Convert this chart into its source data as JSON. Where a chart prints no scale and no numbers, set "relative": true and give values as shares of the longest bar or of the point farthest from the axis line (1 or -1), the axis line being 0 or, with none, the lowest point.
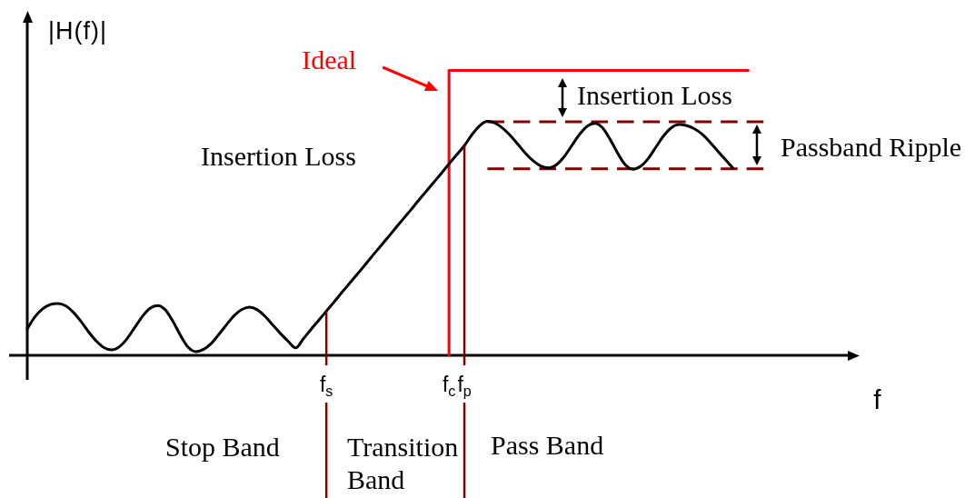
{
  "chart_data": {
    "type": "line",
    "relative": true,
    "xlabel": "f",
    "ylabel": "|H(f)|",
    "categories": [
      null,
      null,
      null,
      null,
      null,
      null,
      null,
      null,
      null,
      null,
      null,
      null,
      null,
      null,
      null,
      null,
      null,
      null,
      null,
      null,
      null,
      null,
      null,
      null,
      null,
      null,
      null,
      null,
      null,
      null,
      null,
      null,
      null,
      null,
      null,
      null,
      null,
      null,
      null,
      "f$_{s}$",
      null,
      null,
      null,
      null,
      null,
      null,
      null,
      null,
      null,
      null,
      null,
      null,
      null,
      null,
      null,
      "f$_{c}$",
      null,
      "f$_{p}$",
      null,
      null,
      null,
      null,
      null,
      null,
      null,
      null,
      null,
      null,
      null,
      null,
      null,
      null,
      null,
      null,
      null,
      null,
      null,
      null,
      null,
      null,
      null,
      null,
      null,
      null,
      null,
      null,
      null,
      null,
      null,
      null,
      null,
      null,
      null,
      null,
      null,
      null,
      null,
      null,
      null,
      null,
      null,
      null,
      null,
      null,
      null,
      null,
      null,
      null,
      null
    ],
    "series": [
      {
        "color": "#000000",
        "values": [
          0.093,
          0.135,
          0.163,
          0.178,
          0.182,
          0.174,
          0.151,
          0.119,
          0.082,
          0.05,
          0.027,
          0.019,
          0.03,
          0.058,
          0.097,
          0.136,
          0.165,
          0.175,
          0.16,
          0.119,
          0.069,
          0.028,
          0.013,
          0.021,
          0.042,
          0.074,
          0.108,
          0.14,
          0.161,
          0.169,
          0.16,
          0.137,
          0.107,
          0.077,
          0.05,
          0.026,
          0.058,
          0.091,
          0.123,
          0.155,
          0.187,
          0.22,
          0.252,
          0.284,
          0.316,
          0.349,
          0.381,
          0.413,
          0.446,
          0.478,
          0.51,
          0.543,
          0.575,
          0.607,
          0.639,
          0.672,
          0.704,
          0.736,
          0.775,
          0.806,
          0.821,
          0.815,
          0.797,
          0.771,
          0.74,
          0.708,
          0.682,
          0.664,
          0.658,
          0.669,
          0.697,
          0.736,
          0.775,
          0.804,
          0.814,
          0.799,
          0.758,
          0.709,
          0.668,
          0.653,
          0.664,
          0.692,
          0.732,
          0.771,
          0.799,
          0.81,
          0.806,
          0.795,
          0.776,
          0.749,
          0.718,
          0.688,
          0.658,
          null,
          null,
          null,
          null,
          null,
          null,
          null,
          null,
          null,
          null,
          null,
          null,
          null,
          null,
          null,
          null
        ]
      },
      {
        "type": "step",
        "name": "Ideal",
        "color": "#ff0000",
        "values": [
          null,
          null,
          null,
          null,
          null,
          null,
          null,
          null,
          null,
          null,
          null,
          null,
          null,
          null,
          null,
          null,
          null,
          null,
          null,
          null,
          null,
          null,
          null,
          null,
          null,
          null,
          null,
          null,
          null,
          null,
          null,
          null,
          null,
          null,
          null,
          null,
          null,
          null,
          null,
          null,
          null,
          null,
          null,
          null,
          null,
          null,
          null,
          null,
          null,
          null,
          null,
          null,
          null,
          null,
          null,
          0,
          1,
          1,
          1,
          1,
          1,
          1,
          1,
          1,
          1,
          1,
          1,
          1,
          1,
          1,
          1,
          1,
          1,
          1,
          1,
          1,
          1,
          1,
          1,
          1,
          1,
          1,
          1,
          1,
          1,
          1,
          1,
          1,
          1,
          1,
          1,
          1,
          1,
          1,
          1,
          null,
          null,
          null,
          null,
          null,
          null,
          null,
          null,
          null,
          null,
          null,
          null,
          null,
          null
        ]
      },
      {
        "type": "line",
        "line_style": "dashed",
        "color": "#800000",
        "values": [
          null,
          null,
          null,
          null,
          null,
          null,
          null,
          null,
          null,
          null,
          null,
          null,
          null,
          null,
          null,
          null,
          null,
          null,
          null,
          null,
          null,
          null,
          null,
          null,
          null,
          null,
          null,
          null,
          null,
          null,
          null,
          null,
          null,
          null,
          null,
          null,
          null,
          null,
          null,
          null,
          null,
          null,
          null,
          null,
          null,
          null,
          null,
          null,
          null,
          null,
          null,
          null,
          null,
          null,
          null,
          null,
          null,
          null,
          null,
          null,
          0.82,
          0.82,
          0.82,
          0.82,
          0.82,
          0.82,
          0.82,
          0.82,
          0.82,
          0.82,
          0.82,
          0.82,
          0.82,
          0.82,
          0.82,
          0.82,
          0.82,
          0.82,
          0.82,
          0.82,
          0.82,
          0.82,
          0.82,
          0.82,
          0.82,
          0.82,
          0.82,
          0.82,
          0.82,
          0.82,
          0.82,
          0.82,
          0.82,
          0.82,
          0.82,
          0.82,
          0.82,
          null,
          null,
          null,
          null,
          null,
          null,
          null,
          null,
          null,
          null,
          null,
          null
        ]
      },
      {
        "type": "line",
        "line_style": "dashed",
        "color": "#800000",
        "values": [
          null,
          null,
          null,
          null,
          null,
          null,
          null,
          null,
          null,
          null,
          null,
          null,
          null,
          null,
          null,
          null,
          null,
          null,
          null,
          null,
          null,
          null,
          null,
          null,
          null,
          null,
          null,
          null,
          null,
          null,
          null,
          null,
          null,
          null,
          null,
          null,
          null,
          null,
          null,
          null,
          null,
          null,
          null,
          null,
          null,
          null,
          null,
          null,
          null,
          null,
          null,
          null,
          null,
          null,
          null,
          null,
          null,
          null,
          null,
          null,
          0.655,
          0.655,
          0.655,
          0.655,
          0.655,
          0.655,
          0.655,
          0.655,
          0.655,
          0.655,
          0.655,
          0.655,
          0.655,
          0.655,
          0.655,
          0.655,
          0.655,
          0.655,
          0.655,
          0.655,
          0.655,
          0.655,
          0.655,
          0.655,
          0.655,
          0.655,
          0.655,
          0.655,
          0.655,
          0.655,
          0.655,
          0.655,
          0.655,
          0.655,
          0.655,
          0.655,
          0.655,
          null,
          null,
          null,
          null,
          null,
          null,
          null,
          null,
          null,
          null,
          null,
          null
        ]
      }
    ],
    "ref_lines": [
      {
        "axis": "x",
        "value": "f$_{s}$",
        "color": "#800000"
      },
      {
        "axis": "x",
        "value": "f$_{p}$",
        "color": "#800000"
      }
    ],
    "annotations": [
      "Insertion Loss",
      "Insertion Loss",
      "Passband Ripple",
      "Stop Band",
      "Transition Band",
      "Pass Band"
    ]
  }
}
